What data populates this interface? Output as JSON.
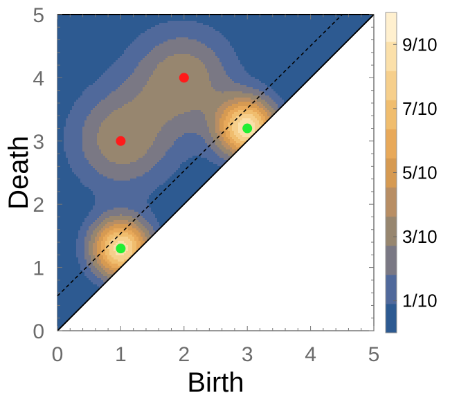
{
  "chart_data": {
    "type": "contour",
    "title": "",
    "xlabel": "Birth",
    "ylabel": "Death",
    "xlim": [
      0,
      5
    ],
    "ylim": [
      0,
      5
    ],
    "xticks": [
      "0",
      "1",
      "2",
      "3",
      "4",
      "5"
    ],
    "yticks": [
      "0",
      "1",
      "2",
      "3",
      "4",
      "5"
    ],
    "diagonal_line": {
      "from": [
        0,
        0
      ],
      "to": [
        5,
        5
      ],
      "style": "solid"
    },
    "dashed_line": {
      "from": [
        0,
        0.55
      ],
      "to": [
        4.5,
        5
      ],
      "style": "dashed"
    },
    "red_points": [
      {
        "x": 1.0,
        "y": 3.0
      },
      {
        "x": 2.0,
        "y": 4.0
      }
    ],
    "green_points": [
      {
        "x": 1.0,
        "y": 1.3
      },
      {
        "x": 3.0,
        "y": 3.2
      }
    ],
    "colorbar": {
      "range": [
        0,
        1
      ],
      "ticks": [
        "1/10",
        "3/10",
        "5/10",
        "7/10",
        "9/10"
      ],
      "levels": [
        0,
        0.1,
        0.2,
        0.3,
        0.4,
        0.5,
        0.6,
        0.7,
        0.8,
        0.9,
        1.0
      ],
      "colors": [
        "#2d5a91",
        "#50699b",
        "#7a7884",
        "#97866f",
        "#b88e64",
        "#d69a52",
        "#e8a95a",
        "#f0bd6e",
        "#f6cf8c",
        "#fbe0aa",
        "#fff0cf"
      ]
    }
  }
}
